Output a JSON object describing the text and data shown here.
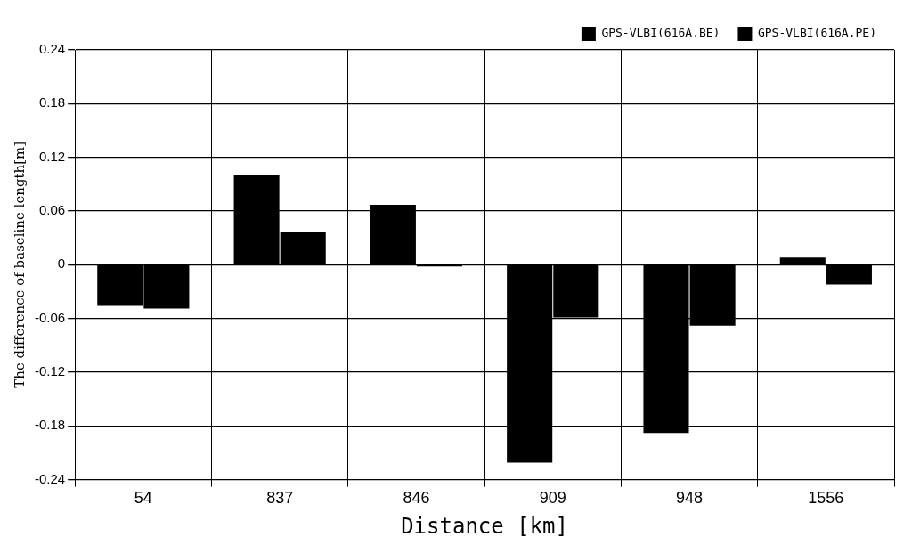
{
  "chart_data": {
    "type": "bar",
    "xlabel": "Distance [km]",
    "ylabel": "The difference of baseline length[m]",
    "categories": [
      "54",
      "837",
      "846",
      "909",
      "948",
      "1556"
    ],
    "series": [
      {
        "name": "GPS-VLBI(616A.BE)",
        "color": "#000000",
        "values": [
          -0.046,
          0.1,
          0.067,
          -0.221,
          -0.188,
          0.008
        ]
      },
      {
        "name": "GPS-VLBI(616A.PE)",
        "color": "#000000",
        "values": [
          -0.049,
          0.037,
          -0.002,
          -0.059,
          -0.068,
          -0.022
        ]
      }
    ],
    "ylim": [
      -0.24,
      0.24
    ],
    "yticks": [
      -0.24,
      -0.18,
      -0.12,
      -0.06,
      0,
      0.06,
      0.12,
      0.18,
      0.24
    ],
    "grid": true,
    "legend": "top right"
  }
}
